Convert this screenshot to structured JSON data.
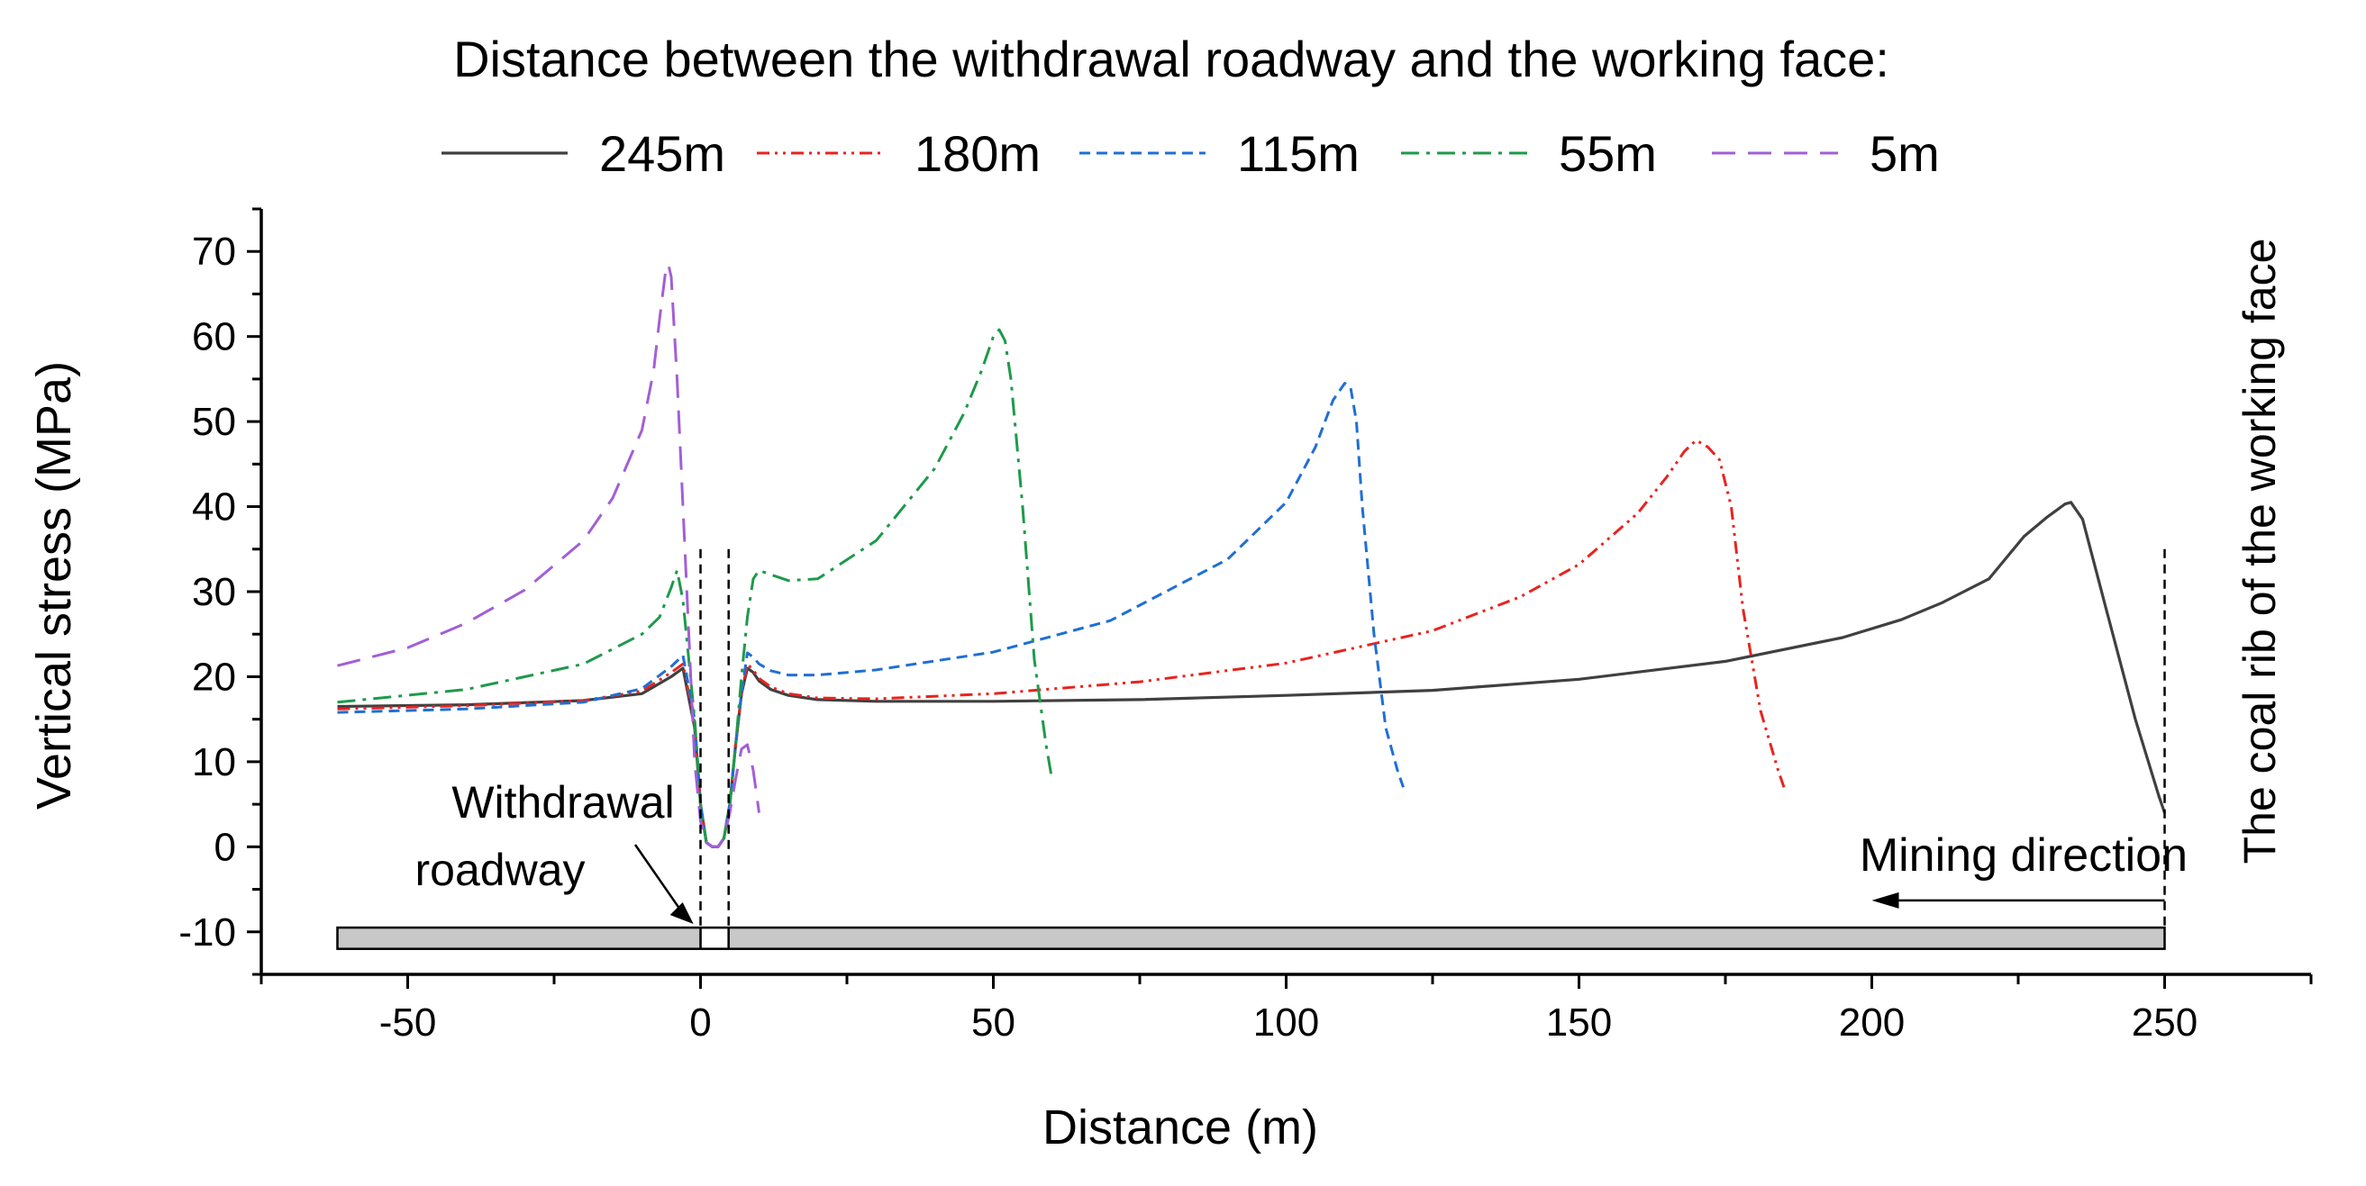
{
  "chart_data": {
    "type": "line",
    "title": "Distance between the withdrawal roadway and the working face:",
    "xlabel": "Distance (m)",
    "ylabel": "Vertical stress (MPa)",
    "xlim": [
      -75,
      275
    ],
    "ylim": [
      -15,
      75
    ],
    "xticks": [
      -50,
      0,
      50,
      100,
      150,
      200,
      250
    ],
    "yticks": [
      -10,
      0,
      10,
      20,
      30,
      40,
      50,
      60,
      70
    ],
    "legend_position": "top",
    "series": [
      {
        "name": "245m",
        "color": "#404040",
        "dash": "solid",
        "x": [
          -62,
          -40,
          -20,
          -10,
          -5,
          -3,
          -1,
          0,
          1,
          2,
          3,
          4,
          5,
          6,
          7,
          8,
          9,
          10,
          12,
          15,
          20,
          30,
          50,
          75,
          100,
          125,
          150,
          175,
          195,
          205,
          212,
          220,
          226,
          230,
          233,
          234,
          236,
          240,
          245,
          249,
          250
        ],
        "y": [
          16.5,
          16.7,
          17.2,
          18,
          20,
          21,
          14,
          5,
          0.5,
          0,
          0,
          1,
          5,
          12,
          18,
          21,
          20.5,
          19.5,
          18.5,
          17.8,
          17.3,
          17.1,
          17.1,
          17.3,
          17.8,
          18.4,
          19.7,
          21.8,
          24.6,
          26.7,
          28.7,
          31.5,
          36.5,
          38.8,
          40.3,
          40.5,
          38.5,
          28,
          15,
          6,
          4
        ]
      },
      {
        "name": "180m",
        "color": "#e8231f",
        "dash": "dash-dot-dot",
        "x": [
          -62,
          -40,
          -20,
          -10,
          -5,
          -3,
          -1,
          0,
          1,
          2,
          3,
          4,
          5,
          6,
          7,
          8,
          9,
          10,
          12,
          15,
          20,
          30,
          50,
          75,
          100,
          125,
          140,
          150,
          160,
          165,
          168,
          170,
          172,
          174,
          176,
          178,
          181,
          184,
          185
        ],
        "y": [
          16.2,
          16.6,
          17.2,
          18.3,
          20.5,
          21.5,
          14.5,
          5,
          0.5,
          0,
          0,
          1,
          5,
          12,
          18,
          21.5,
          20.8,
          19.8,
          18.8,
          18,
          17.5,
          17.4,
          18,
          19.4,
          21.6,
          25.4,
          29.4,
          33.2,
          39.2,
          43.5,
          46.5,
          47.8,
          47,
          45.5,
          40,
          28,
          16,
          9,
          7
        ]
      },
      {
        "name": "115m",
        "color": "#1f6fd4",
        "dash": "dash",
        "x": [
          -62,
          -40,
          -20,
          -10,
          -5,
          -3,
          -1,
          0,
          1,
          2,
          3,
          4,
          5,
          6,
          7,
          8,
          9,
          10,
          12,
          15,
          20,
          30,
          50,
          70,
          90,
          100,
          105,
          108,
          110,
          111,
          112,
          113,
          115,
          117,
          119,
          120
        ],
        "y": [
          15.8,
          16.2,
          17,
          18.6,
          21.2,
          22.5,
          15,
          5,
          0.5,
          0,
          0,
          1,
          5,
          12,
          18,
          22.8,
          22.3,
          21.5,
          20.7,
          20.2,
          20.2,
          20.8,
          22.9,
          26.6,
          33.8,
          40.5,
          47,
          52.5,
          54.5,
          54,
          50,
          40,
          25,
          14,
          9,
          7
        ]
      },
      {
        "name": "55m",
        "color": "#1e9a4a",
        "dash": "dash-dot",
        "x": [
          -62,
          -40,
          -20,
          -10,
          -7,
          -5,
          -4,
          -3,
          -1,
          0,
          1,
          2,
          3,
          4,
          5,
          6,
          7,
          8,
          9,
          10,
          12,
          15,
          20,
          30,
          40,
          45,
          48,
          50,
          51,
          52,
          53,
          55,
          57,
          59,
          60
        ],
        "y": [
          17,
          18.5,
          21.5,
          25,
          27,
          30.5,
          32.5,
          29,
          15,
          5,
          0.5,
          0,
          0,
          1,
          5,
          12,
          20,
          27,
          31.5,
          32.5,
          32,
          31.3,
          31.5,
          36,
          44.5,
          51,
          56,
          60,
          60.8,
          59.5,
          55,
          40,
          22,
          12,
          8
        ]
      },
      {
        "name": "5m",
        "color": "#a25fd6",
        "dash": "long-dash",
        "x": [
          -62,
          -50,
          -40,
          -30,
          -20,
          -15,
          -10,
          -8,
          -7,
          -6,
          -5.5,
          -5,
          -4,
          -3,
          -2,
          -1,
          0,
          1,
          2,
          3,
          4,
          5,
          6,
          7,
          8,
          9,
          10
        ],
        "y": [
          21.3,
          23.4,
          26.3,
          30.2,
          36,
          41,
          49,
          56,
          62,
          67.5,
          68.5,
          67,
          55,
          40,
          25,
          10,
          3,
          0.5,
          0,
          0,
          1,
          4,
          8,
          11.5,
          12,
          9,
          4
        ]
      }
    ],
    "annotations": {
      "roadway_label_line1": "Withdrawal",
      "roadway_label_line2": "roadway",
      "mining_direction": "Mining direction",
      "coal_rib": "The coal rib of the working face"
    },
    "roadway_lines_x": [
      0,
      4.8
    ],
    "coal_rib_x": 250,
    "coal_seam": {
      "x_start": -62,
      "x_end": 250,
      "y_top": -9.5,
      "y_bottom": -12
    },
    "arrow_from_x": 250,
    "arrow_to_x": 200
  },
  "colors": {
    "axis": "#000000",
    "seam_fill": "#c8c8c8"
  }
}
